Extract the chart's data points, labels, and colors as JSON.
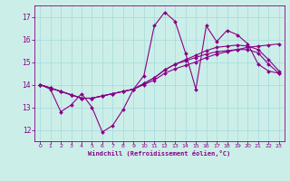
{
  "background_color": "#cceee8",
  "grid_color": "#aadddd",
  "line_color": "#880088",
  "marker_color": "#880088",
  "xlabel": "Windchill (Refroidissement éolien,°C)",
  "xlabel_color": "#880088",
  "tick_color": "#880088",
  "ylim": [
    11.5,
    17.5
  ],
  "xlim": [
    -0.5,
    23.5
  ],
  "yticks": [
    12,
    13,
    14,
    15,
    16,
    17
  ],
  "xticks": [
    0,
    1,
    2,
    3,
    4,
    5,
    6,
    7,
    8,
    9,
    10,
    11,
    12,
    13,
    14,
    15,
    16,
    17,
    18,
    19,
    20,
    21,
    22,
    23
  ],
  "series": {
    "jagged": [
      14.0,
      13.8,
      12.8,
      13.1,
      13.6,
      13.0,
      11.9,
      12.2,
      12.9,
      13.8,
      14.4,
      16.6,
      17.2,
      16.8,
      15.4,
      13.8,
      16.6,
      15.9,
      16.4,
      16.2,
      15.8,
      14.9,
      14.6,
      14.5
    ],
    "smooth1": [
      14.0,
      13.85,
      13.7,
      13.55,
      13.4,
      13.4,
      13.5,
      13.6,
      13.7,
      13.8,
      14.0,
      14.2,
      14.5,
      14.7,
      14.85,
      15.0,
      15.2,
      15.35,
      15.45,
      15.55,
      15.65,
      15.7,
      15.75,
      15.8
    ],
    "smooth2": [
      14.0,
      13.85,
      13.7,
      13.55,
      13.4,
      13.4,
      13.5,
      13.6,
      13.7,
      13.8,
      14.05,
      14.3,
      14.65,
      14.9,
      15.1,
      15.3,
      15.5,
      15.65,
      15.7,
      15.75,
      15.7,
      15.55,
      15.1,
      14.6
    ],
    "smooth3": [
      14.0,
      13.85,
      13.7,
      13.55,
      13.4,
      13.4,
      13.5,
      13.6,
      13.7,
      13.8,
      14.05,
      14.3,
      14.65,
      14.9,
      15.05,
      15.2,
      15.35,
      15.45,
      15.5,
      15.55,
      15.55,
      15.4,
      14.9,
      14.5
    ]
  }
}
